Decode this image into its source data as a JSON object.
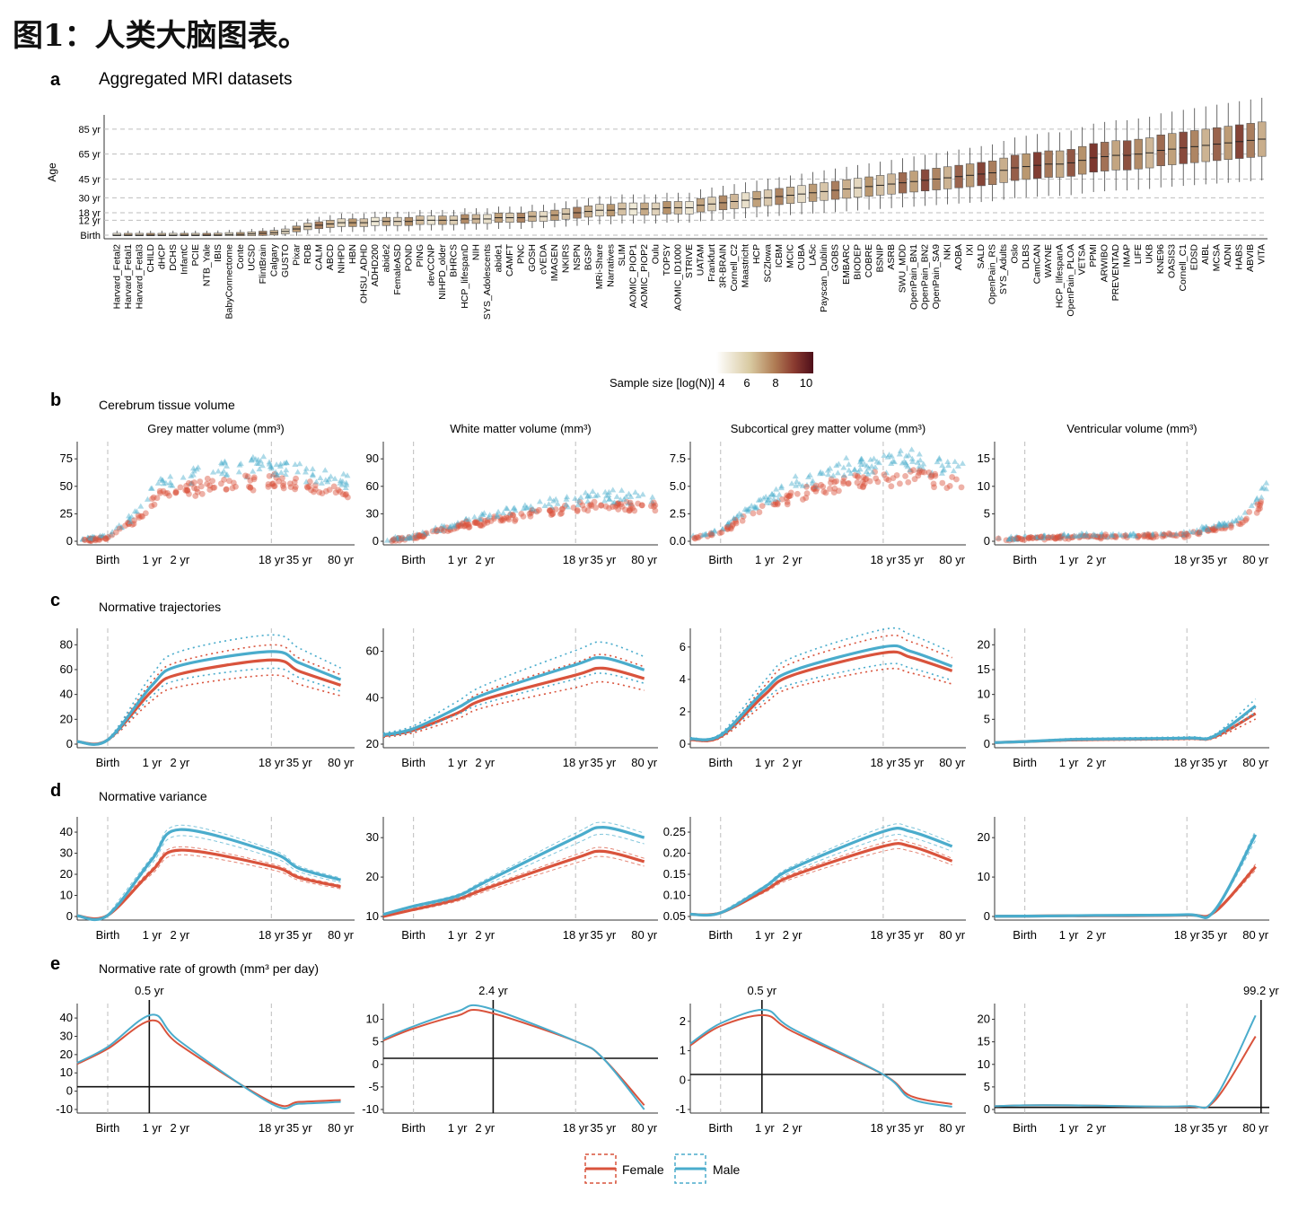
{
  "figure_title": "图1：人类大脑图表。",
  "colors": {
    "female": "#d9533c",
    "male": "#4aaccc",
    "grid": "#bdbdbd",
    "box_light": "#efe9d6",
    "box_dark": "#6e1f1f"
  },
  "panel_a": {
    "letter": "a",
    "title": "Aggregated MRI datasets",
    "ylabel": "Age",
    "y_ticks": [
      "Birth",
      "12 yr",
      "18 yr",
      "30 yr",
      "45 yr",
      "65 yr",
      "85 yr"
    ],
    "y_tick_values_years": [
      0,
      12,
      18,
      30,
      45,
      65,
      85
    ],
    "datasets": [
      "Harvard_Fetal2",
      "Harvard_Fetal1",
      "Harvard_Fetal3",
      "CHILD",
      "dHCP",
      "DCHS",
      "InfantC",
      "PCIE",
      "NTB_Yale",
      "IBIS",
      "BabyConnectome",
      "Conte",
      "UCSD",
      "FlintBrain",
      "Calgary",
      "GUSTO",
      "Pixar",
      "RDB",
      "CALM",
      "ABCD",
      "NIHPD",
      "HBN",
      "OHSU_ADHD",
      "ADHD200",
      "abide2",
      "FemaleASD",
      "POND",
      "PING",
      "devCCNP",
      "NIHPD_older",
      "BHRCS",
      "HCP_lifespanD",
      "NIH",
      "SYS_Adolescents",
      "abide1",
      "CAMFT",
      "PNC",
      "GOSH",
      "cVEDA",
      "IMAGEN",
      "NKIRS",
      "NSPN",
      "BGSP",
      "MRi-Share",
      "Narratives",
      "SLIM",
      "AOMIC_PIOP1",
      "AOMIC_PIOP2",
      "Oulu",
      "TOPSY",
      "AOMIC_ID1000",
      "STRIVE",
      "UATAM",
      "Frankfurt",
      "3R-BRAIN",
      "Cornell_C2",
      "Maastricht",
      "HCP",
      "SCZlowa",
      "ICBM",
      "MCIC",
      "CUBA",
      "LA5c",
      "Payscan_Dublin",
      "GOBS",
      "EMBARC",
      "BIODEP",
      "COBRE",
      "BSNIP",
      "ASRB",
      "SWU_MDD",
      "OpenPain_BN1",
      "OpenPain_BN2",
      "OpenPain_SA9",
      "NKI",
      "AOBA",
      "IXI",
      "SALD",
      "OpenPain_RS",
      "SYS_Adults",
      "Oslo",
      "DLBS",
      "CamCAN",
      "WAYNE",
      "HCP_lifespanA",
      "OpenPain_PLOA",
      "VETSA",
      "PPMI",
      "ARWIBO",
      "PREVENTAD",
      "IMAP",
      "LIFE",
      "UKB",
      "KNE96",
      "OASIS3",
      "Cornell_C1",
      "EDSD",
      "AIBL",
      "MCSA",
      "ADNI",
      "HABS",
      "ABVIB",
      "VITA"
    ],
    "colorbar_label": "Sample size [log(N)]",
    "colorbar_ticks": [
      "4",
      "6",
      "8",
      "10"
    ]
  },
  "x_axis_ticks": [
    "Birth",
    "1 yr",
    "2 yr",
    "18 yr",
    "35 yr",
    "80 yr"
  ],
  "panel_b": {
    "letter": "b",
    "title": "Cerebrum tissue volume",
    "subtitles": [
      "Grey matter volume (mm³)",
      "White matter volume (mm³)",
      "Subcortical grey matter volume (mm³)",
      "Ventricular volume (mm³)"
    ],
    "y_ticks": [
      [
        "0",
        "25",
        "50",
        "75"
      ],
      [
        "0",
        "30",
        "60",
        "90"
      ],
      [
        "0.0",
        "2.5",
        "5.0",
        "7.5"
      ],
      [
        "0",
        "5",
        "10",
        "15"
      ]
    ]
  },
  "panel_c": {
    "letter": "c",
    "title": "Normative trajectories",
    "y_ticks": [
      [
        "0",
        "20",
        "40",
        "60",
        "80"
      ],
      [
        "20",
        "40",
        "60"
      ],
      [
        "0",
        "2",
        "4",
        "6"
      ],
      [
        "0",
        "5",
        "10",
        "15",
        "20"
      ]
    ]
  },
  "panel_d": {
    "letter": "d",
    "title": "Normative variance",
    "y_ticks": [
      [
        "0",
        "10",
        "20",
        "30",
        "40"
      ],
      [
        "10",
        "20",
        "30"
      ],
      [
        "0.05",
        "0.10",
        "0.15",
        "0.20",
        "0.25"
      ],
      [
        "0",
        "10",
        "20"
      ]
    ]
  },
  "panel_e": {
    "letter": "e",
    "title": "Normative rate of growth (mm³ per day)",
    "y_ticks": [
      [
        "-10",
        "0",
        "10",
        "20",
        "30",
        "40"
      ],
      [
        "-10",
        "-5",
        "0",
        "5",
        "10"
      ],
      [
        "-1",
        "0",
        "1",
        "2"
      ],
      [
        "0",
        "5",
        "10",
        "15",
        "20"
      ]
    ],
    "peak_labels": [
      "0.5 yr",
      "2.4 yr",
      "0.5 yr",
      "99.2 yr"
    ]
  },
  "legend": {
    "female": "Female",
    "male": "Male"
  },
  "chart_data": [
    {
      "type": "box",
      "panel": "a",
      "title": "Aggregated MRI datasets",
      "ylabel": "Age",
      "note_units": "median age in years, approximate",
      "medians_years_approx": [
        -0.3,
        -0.3,
        -0.3,
        -0.2,
        -0.2,
        -0.1,
        -0.1,
        0,
        0,
        0.1,
        0.5,
        0.6,
        1,
        1.5,
        2,
        3,
        5,
        7,
        8,
        9,
        10,
        10,
        10,
        11,
        11,
        11,
        11,
        12,
        12,
        12,
        12,
        13,
        13,
        13,
        14,
        14,
        14,
        15,
        15,
        16,
        17,
        18,
        19,
        20,
        20,
        21,
        21,
        21,
        21,
        22,
        22,
        22,
        24,
        25,
        26,
        27,
        28,
        29,
        30,
        31,
        32,
        33,
        34,
        35,
        36,
        37,
        38,
        39,
        40,
        41,
        42,
        43,
        44,
        45,
        46,
        47,
        48,
        49,
        50,
        52,
        54,
        55,
        56,
        57,
        57,
        58,
        60,
        62,
        63,
        64,
        64,
        65,
        66,
        68,
        69,
        70,
        71,
        72,
        73,
        74,
        75,
        76,
        77
      ]
    },
    {
      "type": "scatter",
      "panel": "b",
      "title": "Cerebrum tissue volume",
      "series": [
        {
          "name": "Female",
          "panels": [
            "Grey matter volume (mm³)",
            "White matter volume (mm³)",
            "Subcortical grey matter volume (mm³)",
            "Ventricular volume (mm³)"
          ]
        },
        {
          "name": "Male",
          "panels": [
            "Grey matter volume (mm³)",
            "White matter volume (mm³)",
            "Subcortical grey matter volume (mm³)",
            "Ventricular volume (mm³)"
          ]
        }
      ]
    },
    {
      "type": "line",
      "panel": "c",
      "title": "Normative trajectories",
      "x": [
        "Birth",
        "1 yr",
        "2 yr",
        "18 yr",
        "35 yr",
        "80 yr"
      ],
      "panels": [
        {
          "name": "Grey matter volume (mm³)",
          "ylim": [
            0,
            80
          ],
          "series": [
            {
              "name": "Female",
              "values": [
                3,
                38,
                50,
                60,
                52,
                42
              ]
            },
            {
              "name": "Male",
              "values": [
                3,
                42,
                56,
                66,
                58,
                46
              ]
            }
          ]
        },
        {
          "name": "White matter volume (mm³)",
          "ylim": [
            0,
            65
          ],
          "series": [
            {
              "name": "Female",
              "values": [
                8,
                18,
                26,
                40,
                44,
                38
              ]
            },
            {
              "name": "Male",
              "values": [
                9,
                21,
                29,
                46,
                50,
                43
              ]
            }
          ]
        },
        {
          "name": "Subcortical grey matter volume (mm³)",
          "ylim": [
            0,
            7.5
          ],
          "series": [
            {
              "name": "Female",
              "values": [
                0.5,
                3.3,
                4.6,
                6.1,
                5.8,
                4.9
              ]
            },
            {
              "name": "Male",
              "values": [
                0.6,
                3.6,
                4.9,
                6.5,
                6.2,
                5.2
              ]
            }
          ]
        },
        {
          "name": "Ventricular volume (mm³)",
          "ylim": [
            0,
            22
          ],
          "series": [
            {
              "name": "Female",
              "values": [
                0.5,
                0.8,
                0.9,
                1.1,
                1.4,
                6.0
              ]
            },
            {
              "name": "Male",
              "values": [
                0.5,
                0.9,
                1.0,
                1.2,
                1.6,
                7.5
              ]
            }
          ]
        }
      ]
    },
    {
      "type": "line",
      "panel": "d",
      "title": "Normative variance",
      "x": [
        "Birth",
        "1 yr",
        "2 yr",
        "18 yr",
        "35 yr",
        "80 yr"
      ],
      "panels": [
        {
          "name": "Grey matter volume (mm³)",
          "ylim": [
            0,
            42
          ],
          "series": [
            {
              "name": "Female",
              "values": [
                0.5,
                20,
                29,
                22,
                17,
                13
              ]
            },
            {
              "name": "Male",
              "values": [
                0.5,
                25,
                38,
                28,
                21,
                16
              ]
            }
          ]
        },
        {
          "name": "White matter volume (mm³)",
          "ylim": [
            3,
            31
          ],
          "series": [
            {
              "name": "Female",
              "values": [
                5,
                8,
                11,
                20,
                22,
                19
              ]
            },
            {
              "name": "Male",
              "values": [
                6,
                9,
                13,
                26,
                29,
                26
              ]
            }
          ]
        },
        {
          "name": "Subcortical grey matter volume (mm³)",
          "ylim": [
            0,
            0.26
          ],
          "series": [
            {
              "name": "Female",
              "values": [
                0.01,
                0.07,
                0.11,
                0.19,
                0.19,
                0.15
              ]
            },
            {
              "name": "Male",
              "values": [
                0.01,
                0.08,
                0.13,
                0.23,
                0.23,
                0.19
              ]
            }
          ]
        },
        {
          "name": "Ventricular volume (mm³)",
          "ylim": [
            0,
            27
          ],
          "series": [
            {
              "name": "Female",
              "values": [
                0.1,
                0.2,
                0.2,
                0.4,
                1.2,
                14
              ]
            },
            {
              "name": "Male",
              "values": [
                0.1,
                0.2,
                0.3,
                0.5,
                1.6,
                23
              ]
            }
          ]
        }
      ]
    },
    {
      "type": "line",
      "panel": "e",
      "title": "Normative rate of growth (mm³ per day)",
      "x": [
        "Birth",
        "1 yr",
        "2 yr",
        "18 yr",
        "35 yr",
        "80 yr"
      ],
      "panels": [
        {
          "name": "Grey matter volume (mm³)",
          "ylim": [
            -12,
            42
          ],
          "peak": "0.5 yr",
          "series": [
            {
              "name": "Female",
              "values": [
                20,
                35,
                22,
                -8,
                -8,
                -7
              ]
            },
            {
              "name": "Male",
              "values": [
                21,
                38,
                24,
                -9,
                -9,
                -8
              ]
            }
          ]
        },
        {
          "name": "White matter volume (mm³)",
          "ylim": [
            -12,
            12
          ],
          "peak": "2.4 yr",
          "series": [
            {
              "name": "Female",
              "values": [
                7,
                10,
                11,
                4,
                0,
                -11
              ]
            },
            {
              "name": "Male",
              "values": [
                7.5,
                11,
                12,
                4,
                0,
                -12
              ]
            }
          ]
        },
        {
          "name": "Subcortical grey matter volume (mm³)",
          "ylim": [
            -1.3,
            2.5
          ],
          "peak": "0.5 yr",
          "series": [
            {
              "name": "Female",
              "values": [
                1.8,
                2.2,
                1.6,
                0,
                -0.8,
                -1.1
              ]
            },
            {
              "name": "Male",
              "values": [
                1.9,
                2.4,
                1.7,
                0,
                -0.9,
                -1.2
              ]
            }
          ]
        },
        {
          "name": "Ventricular volume (mm³)",
          "ylim": [
            -0.5,
            24
          ],
          "peak": "99.2 yr",
          "series": [
            {
              "name": "Female",
              "values": [
                0.5,
                0.5,
                0.4,
                0.2,
                1.5,
                17
              ]
            },
            {
              "name": "Male",
              "values": [
                0.5,
                0.5,
                0.4,
                0.3,
                2,
                22
              ]
            }
          ]
        }
      ]
    }
  ]
}
